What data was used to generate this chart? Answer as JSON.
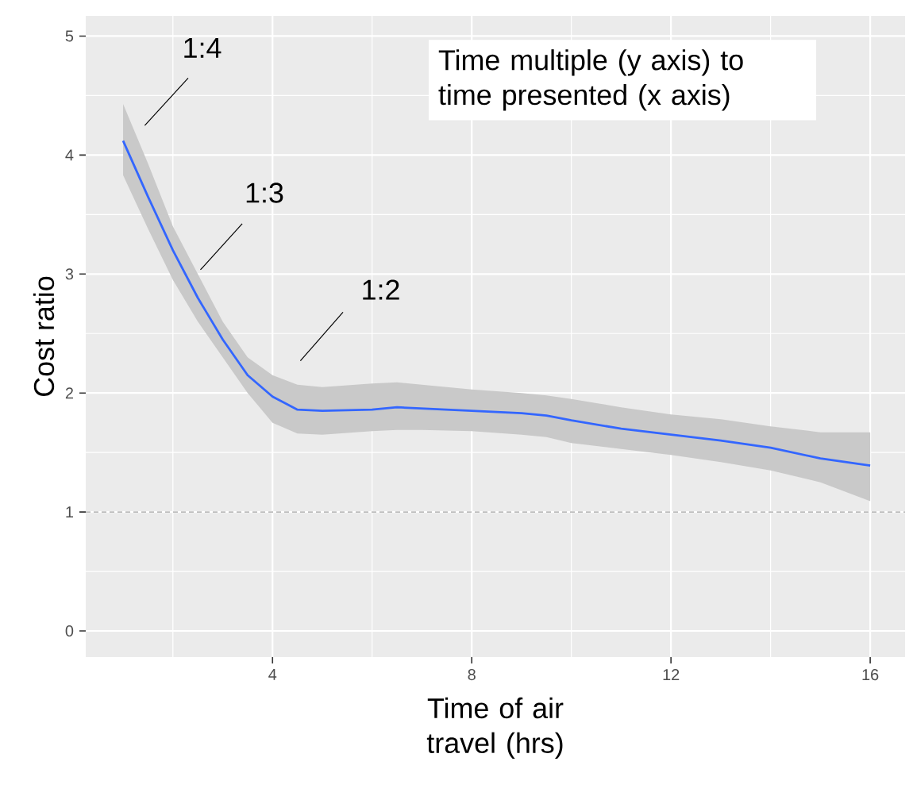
{
  "chart_data": {
    "type": "line",
    "xlabel": "Time of air travel (hrs)",
    "ylabel": "Cost ratio",
    "x": [
      1,
      1.5,
      2,
      2.5,
      3,
      3.5,
      4,
      4.5,
      5,
      6,
      6.5,
      7,
      8,
      9,
      9.5,
      10,
      11,
      12,
      13,
      14,
      15,
      16
    ],
    "series": [
      {
        "color": "#3366ff",
        "values": [
          4.12,
          3.65,
          3.2,
          2.8,
          2.45,
          2.15,
          1.97,
          1.86,
          1.85,
          1.86,
          1.88,
          1.87,
          1.85,
          1.83,
          1.81,
          1.77,
          1.7,
          1.65,
          1.6,
          1.54,
          1.45,
          1.39
        ],
        "lower": [
          3.83,
          3.38,
          2.95,
          2.6,
          2.3,
          2.0,
          1.75,
          1.66,
          1.65,
          1.68,
          1.69,
          1.69,
          1.68,
          1.65,
          1.63,
          1.58,
          1.53,
          1.48,
          1.42,
          1.35,
          1.25,
          1.09
        ],
        "upper": [
          4.43,
          3.93,
          3.4,
          3.0,
          2.6,
          2.3,
          2.15,
          2.07,
          2.05,
          2.08,
          2.09,
          2.07,
          2.03,
          2.0,
          1.98,
          1.95,
          1.88,
          1.82,
          1.78,
          1.72,
          1.67,
          1.67
        ]
      }
    ],
    "xlim": [
      0.25,
      16.7
    ],
    "ylim": [
      -0.22,
      5.17
    ],
    "xticks": [
      {
        "value": 2,
        "label": null
      },
      4,
      {
        "value": 6,
        "label": null
      },
      8,
      {
        "value": 10,
        "label": null
      },
      12,
      {
        "value": 14,
        "label": null
      },
      16
    ],
    "yticks": [
      0,
      {
        "value": 0.5,
        "label": null
      },
      1,
      {
        "value": 1.5,
        "label": null
      },
      2,
      {
        "value": 2.5,
        "label": null
      },
      3,
      {
        "value": 3.5,
        "label": null
      },
      4,
      {
        "value": 4.5,
        "label": null
      },
      5
    ],
    "grid": true,
    "ref_lines": [
      {
        "axis": "y",
        "value": 1,
        "line_style": "dashed",
        "color": "#888888"
      }
    ],
    "annotations": [
      "1:4",
      "1:3",
      "1:2",
      "Time multiple (y axis) to time presented (x axis)"
    ]
  }
}
